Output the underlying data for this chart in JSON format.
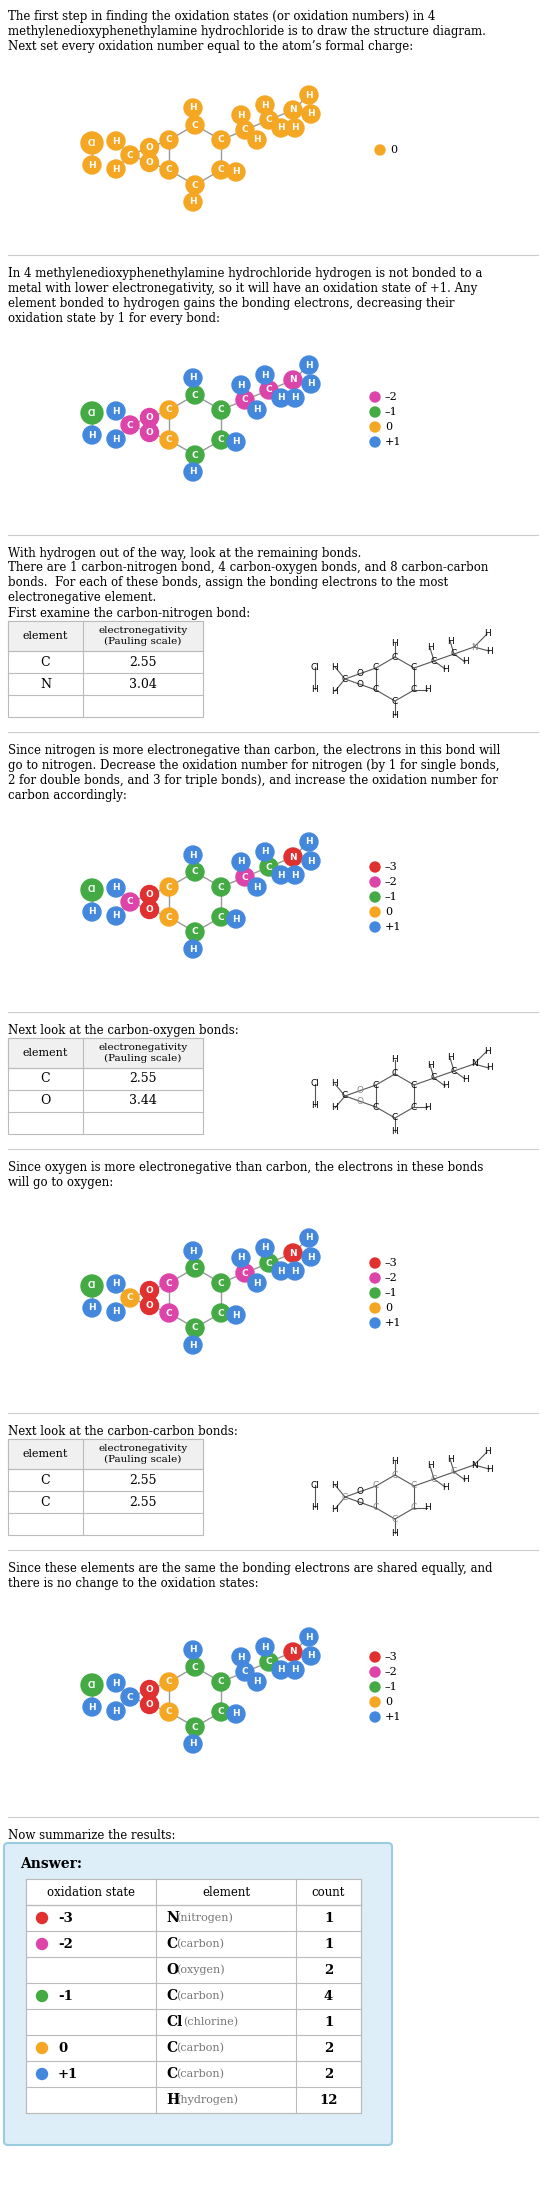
{
  "title_text1": "The first step in finding the oxidation states (or oxidation numbers) in 4\nmethylenedioxyphenethylamine hydrochloride is to draw the structure diagram.\nNext set every oxidation number equal to the atom’s formal charge:",
  "section2_text": "In 4 methylenedioxyphenethylamine hydrochloride hydrogen is not bonded to a\nmetal with lower electronegativity, so it will have an oxidation state of +1. Any\nelement bonded to hydrogen gains the bonding electrons, decreasing their\noxidation state by 1 for every bond:",
  "section3_text1": "With hydrogen out of the way, look at the remaining bonds.",
  "section3_text2": "There are 1 carbon-nitrogen bond, 4 carbon-oxygen bonds, and 8 carbon-carbon\nbonds.  For each of these bonds, assign the bonding electrons to the most\nelectronegative element.",
  "section3_text3": "First examine the carbon-nitrogen bond:",
  "section4_text": "Since nitrogen is more electronegative than carbon, the electrons in this bond will\ngo to nitrogen. Decrease the oxidation number for nitrogen (by 1 for single bonds,\n2 for double bonds, and 3 for triple bonds), and increase the oxidation number for\ncarbon accordingly:",
  "section5_text": "Next look at the carbon-oxygen bonds:",
  "section6_text": "Since oxygen is more electronegative than carbon, the electrons in these bonds\nwill go to oxygen:",
  "section7_text": "Next look at the carbon-carbon bonds:",
  "section8_text": "Since these elements are the same the bonding electrons are shared equally, and\nthere is no change to the oxidation states:",
  "section9_text": "Now summarize the results:",
  "cn_table_rows": [
    [
      "C",
      "2.55"
    ],
    [
      "N",
      "3.04"
    ],
    [
      "",
      ""
    ]
  ],
  "co_table_rows": [
    [
      "C",
      "2.55"
    ],
    [
      "O",
      "3.44"
    ],
    [
      "",
      ""
    ]
  ],
  "cc_table_rows": [
    [
      "C",
      "2.55"
    ],
    [
      "C",
      "2.55"
    ],
    [
      "",
      ""
    ]
  ],
  "answer_rows": [
    [
      "-3",
      "N",
      "nitrogen",
      "1",
      "#e03030"
    ],
    [
      "-2",
      "C",
      "carbon",
      "1",
      "#dd44aa"
    ],
    [
      "",
      "O",
      "oxygen",
      "2",
      ""
    ],
    [
      "-1",
      "C",
      "carbon",
      "4",
      "#44aa44"
    ],
    [
      "",
      "Cl",
      "chlorine",
      "1",
      ""
    ],
    [
      "0",
      "C",
      "carbon",
      "2",
      "#f5a623"
    ],
    [
      "+1",
      "C",
      "carbon",
      "2",
      "#4488dd"
    ],
    [
      "",
      "H",
      "hydrogen",
      "12",
      ""
    ]
  ],
  "colors": {
    "orange": "#f5a623",
    "blue": "#4488dd",
    "green": "#44aa44",
    "pink": "#dd44aa",
    "red": "#e03030",
    "gray": "#888888",
    "white": "#ffffff",
    "black": "#000000",
    "sep": "#cccccc",
    "tbl_border": "#bbbbbb",
    "ans_bg": "#ddeef8",
    "ans_border": "#99cce0"
  },
  "text_fs": 8.5,
  "small_fs": 7.5
}
